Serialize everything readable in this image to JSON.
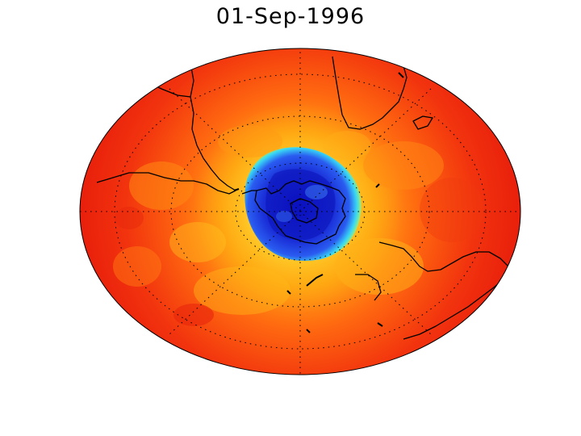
{
  "title": "01-Sep-1996",
  "projection": "orthographic",
  "hemisphere": "southern",
  "map_colors": {
    "ozone_hole_core": "#0a0fc8",
    "ozone_hole_mid": "#2a5cf0",
    "ozone_hole_edge": "#38d6f5",
    "transition": "#f2f03a",
    "collar": "#ffb010",
    "midlatitude": "#ff6a10",
    "outer": "#ee1a0c",
    "coastline": "#000000",
    "graticule": "#000000",
    "background": "#ffffff"
  },
  "graticule": {
    "dotted": true,
    "latitude_circles": true,
    "meridians": true
  },
  "landmasses": [
    "antarctica",
    "south-america",
    "africa",
    "australia"
  ]
}
